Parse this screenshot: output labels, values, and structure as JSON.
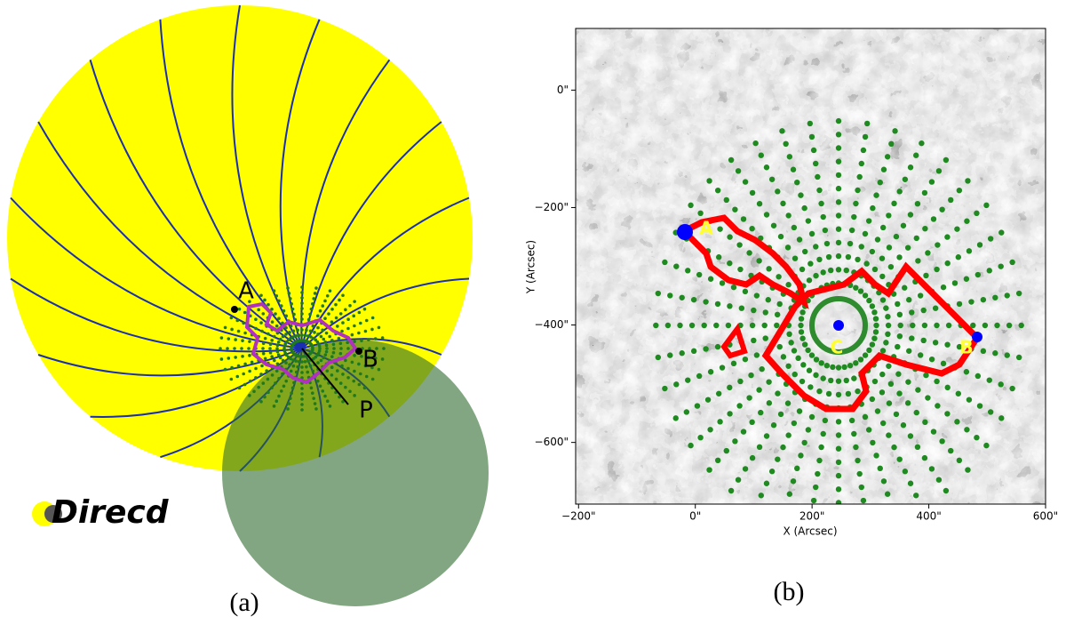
{
  "panel_a": {
    "label": "(a)",
    "markers": [
      "A",
      "B",
      "P"
    ],
    "logo": "Direcd"
  },
  "panel_b": {
    "label": "(b)",
    "x_label": "X (Arcsec)",
    "y_label": "Y (Arcsec)",
    "xlim": [
      -205,
      600
    ],
    "ylim": [
      -705,
      105
    ],
    "xticks": [
      {
        "value": -200,
        "label": "−200\""
      },
      {
        "value": 0,
        "label": "0\""
      },
      {
        "value": 200,
        "label": "200\""
      },
      {
        "value": 400,
        "label": "400\""
      },
      {
        "value": 600,
        "label": "600\""
      }
    ],
    "yticks": [
      {
        "value": 0,
        "label": "0\""
      },
      {
        "value": -200,
        "label": "−200\""
      },
      {
        "value": -400,
        "label": "−400\""
      },
      {
        "value": -600,
        "label": "−600\""
      }
    ],
    "markers": [
      "A",
      "B",
      "C"
    ]
  }
}
